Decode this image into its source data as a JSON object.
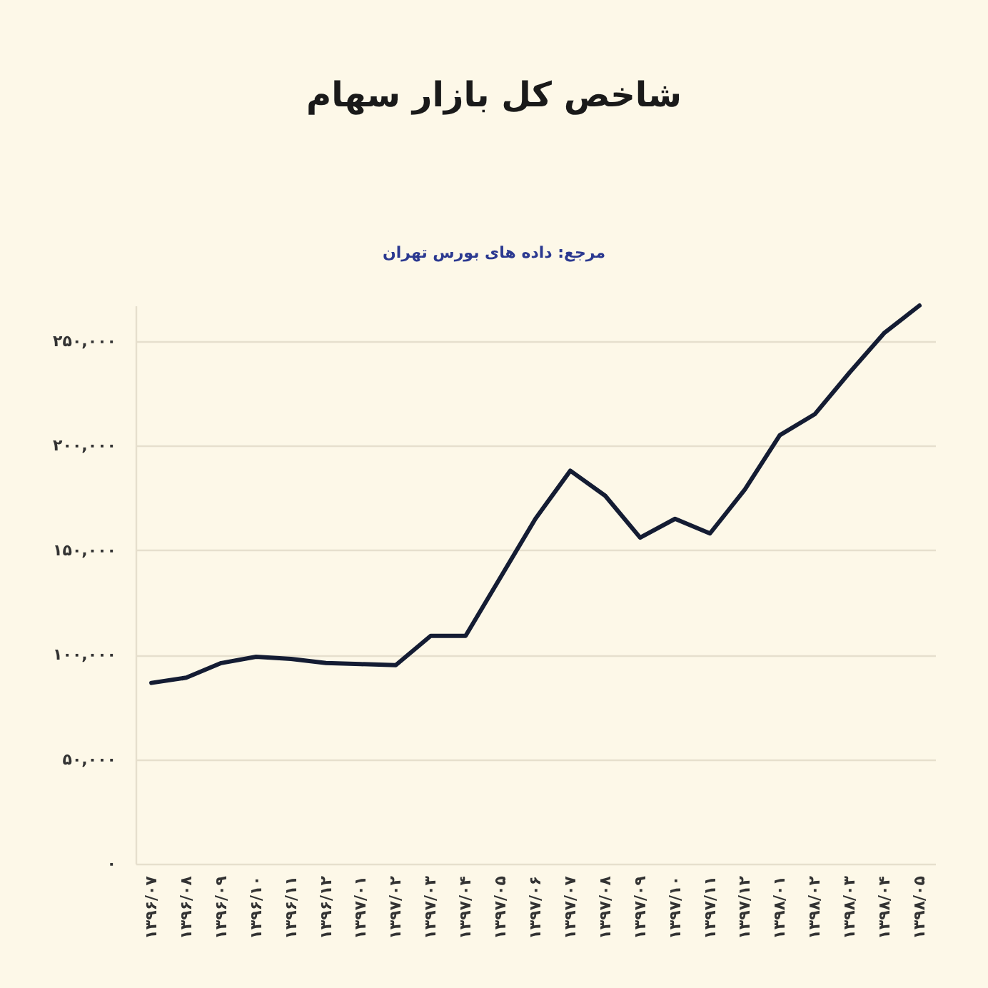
{
  "chart_data": {
    "type": "line",
    "title": "شاخص کل بازار سهام",
    "subtitle": "مرجع: داده های بورس تهران",
    "categories": [
      "۱۳۹۶/۰۷",
      "۱۳۹۶/۰۸",
      "۱۳۹۶/۰۹",
      "۱۳۹۶/۱۰",
      "۱۳۹۶/۱۱",
      "۱۳۹۶/۱۲",
      "۱۳۹۷/۰۱",
      "۱۳۹۷/۰۲",
      "۱۳۹۷/۰۳",
      "۱۳۹۷/۰۴",
      "۱۳۹۷/۰۵",
      "۱۳۹۷/۰۶",
      "۱۳۹۷/۰۷",
      "۱۳۹۷/۰۸",
      "۱۳۹۷/۰۹",
      "۱۳۹۷/۱۰",
      "۱۳۹۷/۱۱",
      "۱۳۹۷/۱۲",
      "۱۳۹۸/۰۱",
      "۱۳۹۸/۰۲",
      "۱۳۹۸/۰۳",
      "۱۳۹۸/۰۴",
      "۱۳۹۸/۰۵"
    ],
    "series": [
      {
        "color": "#141c33",
        "values": [
          86500,
          89000,
          96000,
          99000,
          98000,
          96000,
          95500,
          95000,
          109000,
          109000,
          137000,
          165000,
          188000,
          176000,
          156000,
          165000,
          158000,
          179000,
          205000,
          215000,
          235000,
          254000,
          267000
        ]
      }
    ],
    "ylim": [
      0,
      267000
    ],
    "yticks": [
      {
        "value": 0,
        "label": "۰"
      },
      {
        "value": 50000,
        "label": "۵۰,۰۰۰"
      },
      {
        "value": 100000,
        "label": "۱۰۰,۰۰۰"
      },
      {
        "value": 150000,
        "label": "۱۵۰,۰۰۰"
      },
      {
        "value": 200000,
        "label": "۲۰۰,۰۰۰"
      },
      {
        "value": 250000,
        "label": "۲۵۰,۰۰۰"
      }
    ],
    "grid": "y",
    "marker": "none",
    "line_style": "solid"
  }
}
